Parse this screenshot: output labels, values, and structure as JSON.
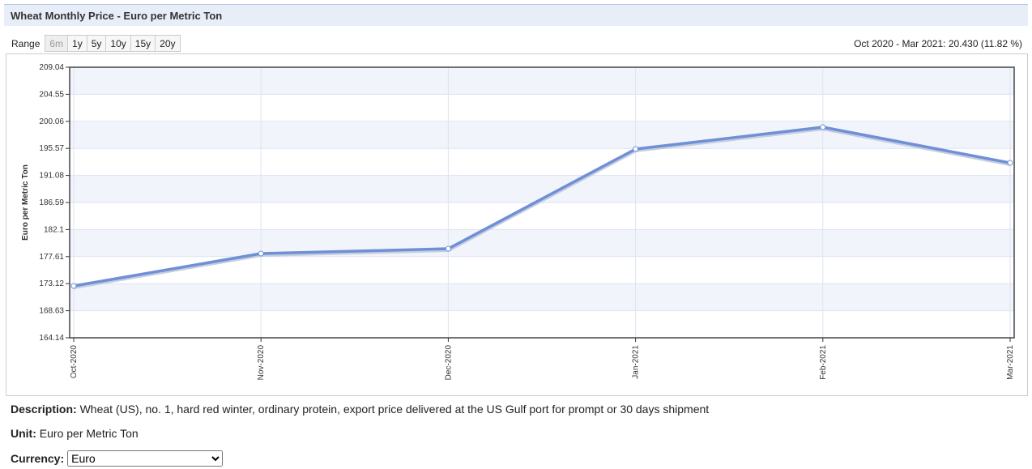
{
  "header": {
    "title": "Wheat Monthly Price - Euro per Metric Ton"
  },
  "range": {
    "label": "Range",
    "buttons": [
      "6m",
      "1y",
      "5y",
      "10y",
      "15y",
      "20y"
    ]
  },
  "summary": "Oct 2020 - Mar 2021: 20.430 (11.82 %)",
  "chart_data": {
    "type": "line",
    "y_label": "Euro per Metric Ton",
    "categories": [
      "Oct-2020",
      "Nov-2020",
      "Dec-2020",
      "Jan-2021",
      "Feb-2021",
      "Mar-2021"
    ],
    "series": [
      {
        "name": "Wheat",
        "color": "#6f8fd6",
        "values": [
          172.74,
          178.12,
          178.92,
          195.46,
          199.09,
          193.17
        ]
      }
    ],
    "ylim": [
      164.14,
      209.04
    ],
    "yticks": [
      164.14,
      168.63,
      173.12,
      177.61,
      182.1,
      186.59,
      191.08,
      195.57,
      200.06,
      204.55,
      209.04
    ],
    "grid": true
  },
  "description": {
    "label": "Description:",
    "text": "Wheat (US), no. 1, hard red winter, ordinary protein, export price delivered at the US Gulf port for prompt or 30 days shipment"
  },
  "unit": {
    "label": "Unit:",
    "text": "Euro per Metric Ton"
  },
  "currency": {
    "label": "Currency:",
    "value": "Euro"
  }
}
